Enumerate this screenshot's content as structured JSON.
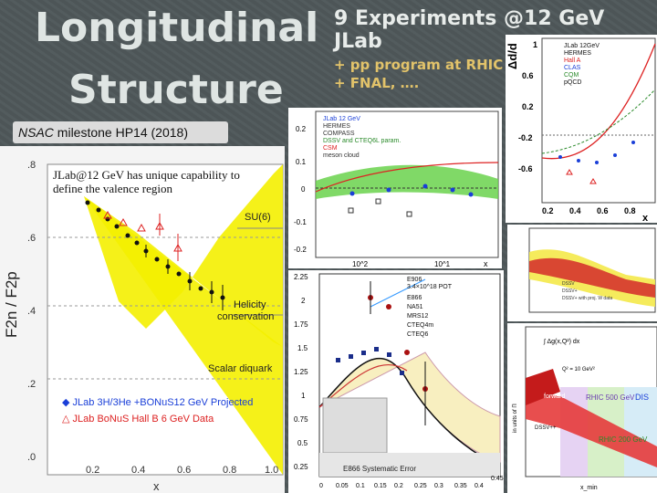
{
  "title": {
    "line1": "Longitudinal",
    "line2": "Structure"
  },
  "slide_header": {
    "headline": "9 Experiments @12 GeV JLab",
    "bullet1": "+ pp program at RHIC",
    "bullet2": "+ FNAL, …."
  },
  "milestone": {
    "prefix": "NSAC",
    "text": " milestone HP14 (2018)"
  },
  "main_plot": {
    "annotation": "JLab@12 GeV has unique capability to define the valence region",
    "label_su6": "SU(6)",
    "label_helicity_1": "Helicity",
    "label_helicity_2": "conservation",
    "label_diquark": "Scalar diquark",
    "ylabel": "F2n / F2p",
    "xlabel": "x",
    "yticks": [
      ".8",
      ".6",
      ".4",
      ".2",
      ".0"
    ],
    "xticks": [
      "0.2",
      "0.4",
      "0.6",
      "0.8",
      "1.0"
    ],
    "legend1_a": "JLab",
    "legend1_b": "3H/3He",
    "legend1_c": "+BONuS12 GeV Projected",
    "legend2": "JLab BoNuS Hall B 6 GeV Data",
    "colors": {
      "band": "#f4f000",
      "legend_blue": "#1a3fd8",
      "legend_red": "#d22"
    }
  },
  "asym_plot": {
    "legend": [
      "JLab 12 GeV",
      "HERMES",
      "COMPASS",
      "DSSV and CTEQ6L param.",
      "CSM",
      "meson cloud"
    ],
    "yticks": [
      "0.2",
      "0.1",
      "0",
      "-0.1",
      "-0.2"
    ],
    "xticks": [
      "10^2",
      "10^1"
    ],
    "xlabel": "x"
  },
  "dd_plot": {
    "ylabel": "Δd/d",
    "legend": [
      "JLab 12GeV",
      "HERMES",
      "Hall A",
      "CLAS",
      "CQM",
      "pQCD"
    ],
    "yticks": [
      "1",
      "0.6",
      "0.2",
      "-0.2",
      "-0.6"
    ],
    "xticks": [
      "0.2",
      "0.4",
      "0.6",
      "0.8"
    ],
    "xlabel": "x"
  },
  "e906_plot": {
    "legend": [
      "E906",
      "3.4×10^18 POT",
      "E866",
      "NA51",
      "MRS12",
      "CTEQ4m",
      "CTEQ6"
    ],
    "yticks": [
      "2.25",
      "2",
      "1.75",
      "1.5",
      "1.25",
      "1",
      "0.75",
      "0.5",
      "0.25"
    ],
    "xticks": [
      "0",
      "0.05",
      "0.1",
      "0.15",
      "0.2",
      "0.25",
      "0.3",
      "0.35",
      "0.4",
      "0.45"
    ],
    "footer": "E866 Systematic Error"
  },
  "ubar_plot": {
    "labels": [
      "DSSV",
      "DSSV+",
      "DSSV+ with proj. W data"
    ]
  },
  "integral_plot": {
    "formula": "∫ Δg(x,Q²) dx",
    "qlabel": "Q² = 10 GeV²",
    "ylabel": "in units of Π",
    "forward": "forward",
    "rhic500": "RHIC 500 GeV",
    "rhic200": "RHIC 200 GeV",
    "dis": "DIS",
    "dssv": "DSSV++",
    "xlabel": "x_min"
  }
}
